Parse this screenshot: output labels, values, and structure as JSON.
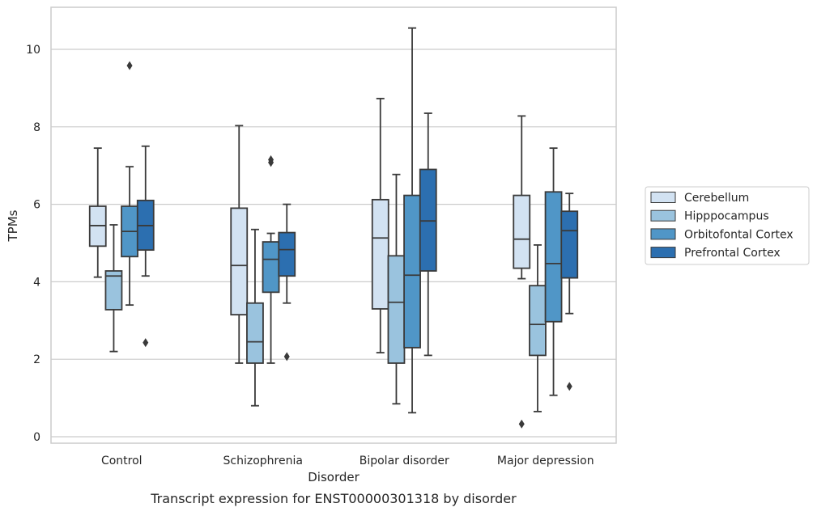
{
  "chart_data": {
    "type": "box",
    "title": "",
    "caption": "Transcript expression for ENST00000301318 by disorder",
    "xlabel": "Disorder",
    "ylabel": "TPMs",
    "ylim": [
      -0.15,
      11.1
    ],
    "yticks": [
      0,
      2,
      4,
      6,
      8,
      10
    ],
    "ytick_labels": [
      "0",
      "2",
      "4",
      "6",
      "8",
      "10"
    ],
    "grid": "horizontal",
    "legend_position": "right",
    "categories": [
      "Control",
      "Schizophrenia",
      "Bipolar disorder",
      "Major depression"
    ],
    "series": [
      {
        "name": "Cerebellum",
        "color": "#d2e2f2",
        "boxes": [
          {
            "whisker_low": 4.12,
            "q1": 4.92,
            "median": 5.45,
            "q3": 5.95,
            "whisker_high": 7.45,
            "outliers": []
          },
          {
            "whisker_low": 1.9,
            "q1": 3.15,
            "median": 4.42,
            "q3": 5.9,
            "whisker_high": 8.03,
            "outliers": []
          },
          {
            "whisker_low": 2.17,
            "q1": 3.3,
            "median": 5.13,
            "q3": 6.12,
            "whisker_high": 8.73,
            "outliers": []
          },
          {
            "whisker_low": 4.08,
            "q1": 4.35,
            "median": 5.1,
            "q3": 6.23,
            "whisker_high": 8.28,
            "outliers": [
              0.33
            ]
          }
        ]
      },
      {
        "name": "Hipppocampus",
        "color": "#9ac3de",
        "boxes": [
          {
            "whisker_low": 2.2,
            "q1": 3.28,
            "median": 4.15,
            "q3": 4.28,
            "whisker_high": 5.47,
            "outliers": []
          },
          {
            "whisker_low": 0.8,
            "q1": 1.9,
            "median": 2.45,
            "q3": 3.45,
            "whisker_high": 5.35,
            "outliers": []
          },
          {
            "whisker_low": 0.85,
            "q1": 1.9,
            "median": 3.47,
            "q3": 4.67,
            "whisker_high": 6.77,
            "outliers": []
          },
          {
            "whisker_low": 0.65,
            "q1": 2.1,
            "median": 2.9,
            "q3": 3.9,
            "whisker_high": 4.95,
            "outliers": []
          }
        ]
      },
      {
        "name": "Orbitofontal Cortex",
        "color": "#5096c7",
        "boxes": [
          {
            "whisker_low": 3.4,
            "q1": 4.65,
            "median": 5.3,
            "q3": 5.95,
            "whisker_high": 6.97,
            "outliers": [
              9.58
            ]
          },
          {
            "whisker_low": 1.9,
            "q1": 3.73,
            "median": 4.58,
            "q3": 5.03,
            "whisker_high": 5.25,
            "outliers": [
              7.08,
              7.15
            ]
          },
          {
            "whisker_low": 0.62,
            "q1": 2.3,
            "median": 4.17,
            "q3": 6.23,
            "whisker_high": 10.55,
            "outliers": []
          },
          {
            "whisker_low": 1.07,
            "q1": 2.97,
            "median": 4.47,
            "q3": 6.32,
            "whisker_high": 7.45,
            "outliers": []
          }
        ]
      },
      {
        "name": "Prefrontal Cortex",
        "color": "#2c6fb0",
        "boxes": [
          {
            "whisker_low": 4.15,
            "q1": 4.82,
            "median": 5.45,
            "q3": 6.1,
            "whisker_high": 7.5,
            "outliers": [
              2.43
            ]
          },
          {
            "whisker_low": 3.45,
            "q1": 4.15,
            "median": 4.83,
            "q3": 5.27,
            "whisker_high": 6.0,
            "outliers": [
              2.07
            ]
          },
          {
            "whisker_low": 2.1,
            "q1": 4.28,
            "median": 5.57,
            "q3": 6.9,
            "whisker_high": 8.35,
            "outliers": []
          },
          {
            "whisker_low": 3.18,
            "q1": 4.1,
            "median": 5.32,
            "q3": 5.82,
            "whisker_high": 6.28,
            "outliers": [
              1.3
            ]
          }
        ]
      }
    ]
  }
}
